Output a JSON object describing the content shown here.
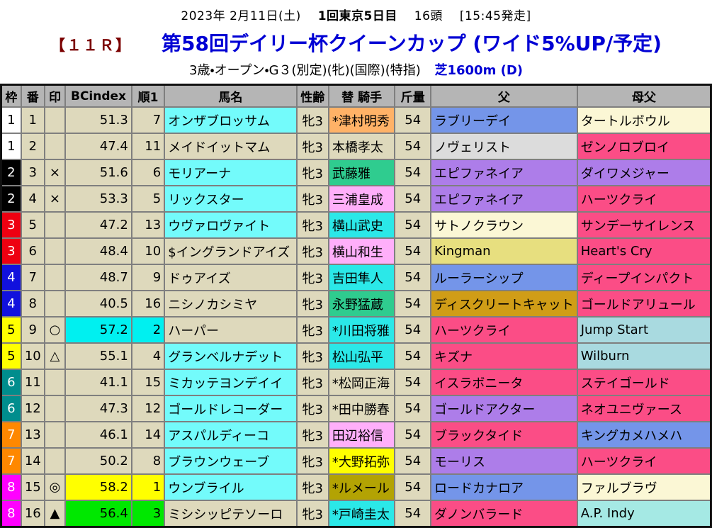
{
  "header": {
    "date_left": "2023年 2月11日(土)",
    "meeting": "1回東京5日目",
    "head_count": "16頭",
    "start_time": "[15:45発走]",
    "race_no": "【１１Ｒ】",
    "title": "第58回デイリー杯クイーンカップ (ワイド5%UP/予定)",
    "conditions": "3歳・オープン・G３(別定)(牝)(国際)(特指)",
    "course": "芝1600m (D)"
  },
  "colors": {
    "title_blue": "#0000D4",
    "race_no_maroon": "#7B0000",
    "horse_name_maroon": "#7B0B0B",
    "header_gray": "#B5B5B5",
    "cell_beige": "#DED9BC",
    "name_cyan": "#73FBFB",
    "hl_cyan": "#00F0F0",
    "hl_yellow": "#FFFF00",
    "hl_green": "#00E800",
    "jockey_orange": "#FFB267",
    "jockey_green": "#2FCC8F",
    "jockey_pink": "#FFAFFA",
    "jockey_cyan": "#2BE8E8",
    "jockey_yellow": "#FFFF00",
    "jockey_olive": "#B3A303",
    "sire_blue": "#7495E9",
    "sire_gray": "#DCDCDC",
    "sire_purple": "#AD7DE9",
    "sire_cream": "#FBF7D5",
    "sire_khaki": "#E7DF7F",
    "sire_gold": "#D09D17",
    "pink": "#FB4D86",
    "pale_blue": "#A9DAE0",
    "pale_cyan": "#A5E9E4"
  },
  "frame_colors": {
    "1": {
      "bg": "#FFFFFF",
      "fg": "#000000"
    },
    "2": {
      "bg": "#000000",
      "fg": "#FFFFFF"
    },
    "3": {
      "bg": "#EE0011",
      "fg": "#FFFFFF"
    },
    "4": {
      "bg": "#1111DD",
      "fg": "#FFFFFF"
    },
    "5": {
      "bg": "#FFFF00",
      "fg": "#000000"
    },
    "6": {
      "bg": "#008D8D",
      "fg": "#FFFFFF"
    },
    "7": {
      "bg": "#FF8800",
      "fg": "#FFFFFF"
    },
    "8": {
      "bg": "#FF00FF",
      "fg": "#FFFFFF"
    }
  },
  "table": {
    "columns": [
      "枠",
      "番",
      "印",
      "BCindex",
      "順1",
      "馬名",
      "性齢",
      "替 騎手",
      "斤量",
      "父",
      "母父"
    ],
    "rows": [
      {
        "waku": "1",
        "num": "1",
        "mark": "",
        "bc": "51.3",
        "bc_bg": "cell_beige",
        "rank": "7",
        "horse": "オンザブロッサム",
        "horse_bg": "name_cyan",
        "sex": "牝3",
        "jockey": "*津村明秀",
        "jockey_bg": "jockey_orange",
        "jockey_fg": "black",
        "wt": "54",
        "sire": "ラブリーデイ",
        "sire_bg": "sire_blue",
        "dam": "タートルボウル",
        "dam_bg": "sire_cream"
      },
      {
        "waku": "1",
        "num": "2",
        "mark": "",
        "bc": "47.4",
        "bc_bg": "cell_beige",
        "rank": "11",
        "horse": "メイドイットマム",
        "horse_bg": "cell_beige",
        "sex": "牝3",
        "jockey": "本橋孝太",
        "jockey_bg": "cell_beige",
        "jockey_fg": "red",
        "wt": "54",
        "sire": "ノヴェリスト",
        "sire_bg": "sire_gray",
        "dam": "ゼンノロブロイ",
        "dam_bg": "pink"
      },
      {
        "waku": "2",
        "num": "3",
        "mark": "×",
        "bc": "51.6",
        "bc_bg": "cell_beige",
        "rank": "6",
        "horse": "モリアーナ",
        "horse_bg": "name_cyan",
        "sex": "牝3",
        "jockey": "武藤雅",
        "jockey_bg": "jockey_green",
        "jockey_fg": "black",
        "wt": "54",
        "sire": "エピファネイア",
        "sire_bg": "sire_purple",
        "dam": "ダイワメジャー",
        "dam_bg": "sire_purple"
      },
      {
        "waku": "2",
        "num": "4",
        "mark": "×",
        "bc": "53.3",
        "bc_bg": "cell_beige",
        "rank": "5",
        "horse": "リックスター",
        "horse_bg": "name_cyan",
        "sex": "牝3",
        "jockey": "三浦皇成",
        "jockey_bg": "jockey_pink",
        "jockey_fg": "black",
        "wt": "54",
        "sire": "エピファネイア",
        "sire_bg": "sire_purple",
        "dam": "ハーツクライ",
        "dam_bg": "pink"
      },
      {
        "waku": "3",
        "num": "5",
        "mark": "",
        "bc": "47.2",
        "bc_bg": "cell_beige",
        "rank": "13",
        "horse": "ウヴァロヴァイト",
        "horse_bg": "name_cyan",
        "sex": "牝3",
        "jockey": "横山武史",
        "jockey_bg": "jockey_cyan",
        "jockey_fg": "black",
        "wt": "54",
        "sire": "サトノクラウン",
        "sire_bg": "sire_cream",
        "dam": "サンデーサイレンス",
        "dam_bg": "pink"
      },
      {
        "waku": "3",
        "num": "6",
        "mark": "",
        "bc": "48.4",
        "bc_bg": "cell_beige",
        "rank": "10",
        "horse": "$イングランドアイズ",
        "horse_bg": "cell_beige",
        "sex": "牝3",
        "jockey": "横山和生",
        "jockey_bg": "jockey_pink",
        "jockey_fg": "black",
        "wt": "54",
        "sire": "Kingman",
        "sire_bg": "sire_khaki",
        "dam": "Heart's Cry",
        "dam_bg": "pink"
      },
      {
        "waku": "4",
        "num": "7",
        "mark": "",
        "bc": "48.7",
        "bc_bg": "cell_beige",
        "rank": "9",
        "horse": "ドゥアイズ",
        "horse_bg": "cell_beige",
        "sex": "牝3",
        "jockey": "吉田隼人",
        "jockey_bg": "jockey_cyan",
        "jockey_fg": "black",
        "wt": "54",
        "sire": "ルーラーシップ",
        "sire_bg": "sire_blue",
        "dam": "ディープインパクト",
        "dam_bg": "pink"
      },
      {
        "waku": "4",
        "num": "8",
        "mark": "",
        "bc": "40.5",
        "bc_bg": "cell_beige",
        "rank": "16",
        "horse": "ニシノカシミヤ",
        "horse_bg": "cell_beige",
        "sex": "牝3",
        "jockey": "永野猛蔵",
        "jockey_bg": "jockey_green",
        "jockey_fg": "black",
        "wt": "54",
        "sire": "ディスクリートキャット",
        "sire_bg": "sire_gold",
        "dam": "ゴールドアリュール",
        "dam_bg": "pink"
      },
      {
        "waku": "5",
        "num": "9",
        "mark": "○",
        "bc": "57.2",
        "bc_bg": "hl_cyan",
        "rank": "2",
        "rank_bg": "hl_cyan",
        "horse": "ハーパー",
        "horse_bg": "cell_beige",
        "sex": "牝3",
        "jockey": "*川田将雅",
        "jockey_bg": "jockey_cyan",
        "jockey_fg": "blue",
        "wt": "54",
        "sire": "ハーツクライ",
        "sire_bg": "pink",
        "dam": "Jump Start",
        "dam_bg": "pale_blue"
      },
      {
        "waku": "5",
        "num": "10",
        "mark": "△",
        "bc": "55.1",
        "bc_bg": "cell_beige",
        "rank": "4",
        "horse": "グランベルナデット",
        "horse_bg": "name_cyan",
        "sex": "牝3",
        "jockey": "松山弘平",
        "jockey_bg": "jockey_cyan",
        "jockey_fg": "blue",
        "wt": "54",
        "sire": "キズナ",
        "sire_bg": "pink",
        "dam": "Wilburn",
        "dam_bg": "pale_blue"
      },
      {
        "waku": "6",
        "num": "11",
        "mark": "",
        "bc": "41.1",
        "bc_bg": "cell_beige",
        "rank": "15",
        "horse": "ミカッテヨンデイイ",
        "horse_bg": "name_cyan",
        "sex": "牝3",
        "jockey": "*松岡正海",
        "jockey_bg": "cell_beige",
        "jockey_fg": "black",
        "wt": "54",
        "sire": "イスラボニータ",
        "sire_bg": "pink",
        "dam": "ステイゴールド",
        "dam_bg": "pink"
      },
      {
        "waku": "6",
        "num": "12",
        "mark": "",
        "bc": "47.3",
        "bc_bg": "cell_beige",
        "rank": "12",
        "horse": "ゴールドレコーダー",
        "horse_bg": "name_cyan",
        "sex": "牝3",
        "jockey": "*田中勝春",
        "jockey_bg": "cell_beige",
        "jockey_fg": "black",
        "wt": "54",
        "sire": "ゴールドアクター",
        "sire_bg": "sire_purple",
        "dam": "ネオユニヴァース",
        "dam_bg": "pink"
      },
      {
        "waku": "7",
        "num": "13",
        "mark": "",
        "bc": "46.1",
        "bc_bg": "cell_beige",
        "rank": "14",
        "horse": "アスパルディーコ",
        "horse_bg": "name_cyan",
        "sex": "牝3",
        "jockey": "田辺裕信",
        "jockey_bg": "jockey_pink",
        "jockey_fg": "black",
        "wt": "54",
        "sire": "ブラックタイド",
        "sire_bg": "pink",
        "dam": "キングカメハメハ",
        "dam_bg": "sire_blue"
      },
      {
        "waku": "7",
        "num": "14",
        "mark": "",
        "bc": "50.2",
        "bc_bg": "cell_beige",
        "rank": "8",
        "horse": "ブラウンウェーブ",
        "horse_bg": "name_cyan",
        "sex": "牝3",
        "jockey": "*大野拓弥",
        "jockey_bg": "jockey_yellow",
        "jockey_fg": "black",
        "wt": "54",
        "sire": "モーリス",
        "sire_bg": "sire_purple",
        "dam": "ハーツクライ",
        "dam_bg": "pink"
      },
      {
        "waku": "8",
        "num": "15",
        "mark": "◎",
        "bc": "58.2",
        "bc_bg": "hl_yellow",
        "rank": "1",
        "rank_bg": "hl_yellow",
        "horse": "ウンブライル",
        "horse_bg": "name_cyan",
        "sex": "牝3",
        "jockey": "*ルメール",
        "jockey_bg": "jockey_olive",
        "jockey_fg": "blue",
        "wt": "54",
        "sire": "ロードカナロア",
        "sire_bg": "sire_blue",
        "dam": "ファルブラヴ",
        "dam_bg": "sire_cream"
      },
      {
        "waku": "8",
        "num": "16",
        "mark": "▲",
        "bc": "56.4",
        "bc_bg": "hl_green",
        "rank": "3",
        "rank_bg": "hl_green",
        "horse": "ミシシッピテソーロ",
        "horse_bg": "cell_beige",
        "sex": "牝3",
        "jockey": "*戸崎圭太",
        "jockey_bg": "jockey_cyan",
        "jockey_fg": "black",
        "wt": "54",
        "sire": "ダノンバラード",
        "sire_bg": "pink",
        "dam": "A.P. Indy",
        "dam_bg": "pale_cyan"
      }
    ]
  }
}
